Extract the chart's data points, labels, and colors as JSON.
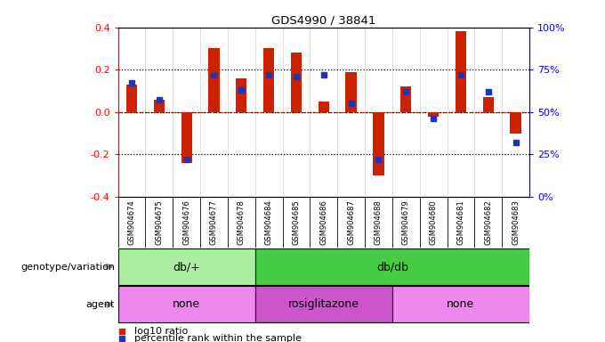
{
  "title": "GDS4990 / 38841",
  "samples": [
    "GSM904674",
    "GSM904675",
    "GSM904676",
    "GSM904677",
    "GSM904678",
    "GSM904684",
    "GSM904685",
    "GSM904686",
    "GSM904687",
    "GSM904688",
    "GSM904679",
    "GSM904680",
    "GSM904681",
    "GSM904682",
    "GSM904683"
  ],
  "log10_ratio": [
    0.13,
    0.06,
    -0.24,
    0.3,
    0.16,
    0.3,
    0.28,
    0.05,
    0.19,
    -0.3,
    0.12,
    -0.02,
    0.38,
    0.07,
    -0.1
  ],
  "percentile": [
    67,
    57,
    22,
    72,
    63,
    72,
    71,
    72,
    55,
    22,
    62,
    46,
    72,
    62,
    32
  ],
  "ylim": [
    -0.4,
    0.4
  ],
  "yticks_left": [
    -0.4,
    -0.2,
    0.0,
    0.2,
    0.4
  ],
  "yticks_right": [
    0,
    25,
    50,
    75,
    100
  ],
  "bar_color": "#cc2200",
  "dot_color": "#2233bb",
  "bg_color": "#ffffff",
  "genotype_groups": [
    {
      "label": "db/+",
      "start": 0,
      "end": 5,
      "color": "#aaeea0"
    },
    {
      "label": "db/db",
      "start": 5,
      "end": 15,
      "color": "#44cc44"
    }
  ],
  "agent_groups": [
    {
      "label": "none",
      "start": 0,
      "end": 5,
      "color": "#ee88ee"
    },
    {
      "label": "rosiglitazone",
      "start": 5,
      "end": 10,
      "color": "#cc55cc"
    },
    {
      "label": "none",
      "start": 10,
      "end": 15,
      "color": "#ee88ee"
    }
  ],
  "legend_bar_label": "log10 ratio",
  "legend_dot_label": "percentile rank within the sample",
  "xlabel_genotype": "genotype/variation",
  "xlabel_agent": "agent",
  "label_color": "#888888"
}
